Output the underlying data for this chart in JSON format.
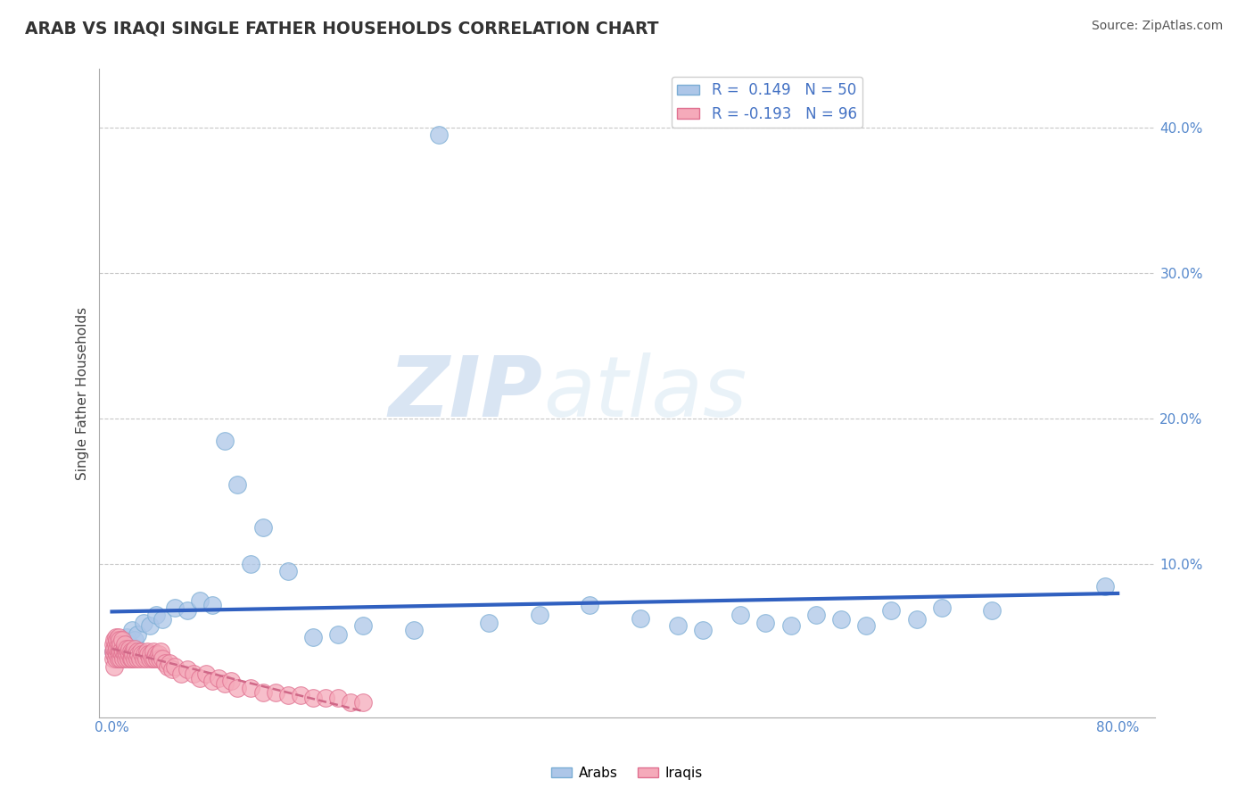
{
  "title": "ARAB VS IRAQI SINGLE FATHER HOUSEHOLDS CORRELATION CHART",
  "source": "Source: ZipAtlas.com",
  "ylabel": "Single Father Households",
  "xlim": [
    -0.01,
    0.83
  ],
  "ylim": [
    -0.005,
    0.44
  ],
  "xtick_vals": [
    0.0,
    0.8
  ],
  "ytick_vals": [
    0.1,
    0.2,
    0.3,
    0.4
  ],
  "grid_color": "#c8c8c8",
  "background_color": "#ffffff",
  "arab_color": "#adc6e8",
  "arab_edge_color": "#7aadd4",
  "iraqi_color": "#f5aaba",
  "iraqi_edge_color": "#e07090",
  "arab_line_color": "#3060c0",
  "iraqi_line_color": "#d06888",
  "legend_r_arab": "R =  0.149",
  "legend_n_arab": "N = 50",
  "legend_r_iraqi": "R = -0.193",
  "legend_n_iraqi": "N = 96",
  "watermark_zip": "ZIP",
  "watermark_atlas": "atlas",
  "arab_x": [
    0.001,
    0.002,
    0.003,
    0.004,
    0.005,
    0.006,
    0.007,
    0.008,
    0.009,
    0.01,
    0.012,
    0.014,
    0.016,
    0.018,
    0.02,
    0.025,
    0.03,
    0.035,
    0.04,
    0.05,
    0.06,
    0.07,
    0.08,
    0.09,
    0.1,
    0.11,
    0.12,
    0.14,
    0.16,
    0.18,
    0.2,
    0.24,
    0.26,
    0.3,
    0.34,
    0.38,
    0.42,
    0.45,
    0.47,
    0.5,
    0.52,
    0.54,
    0.56,
    0.58,
    0.6,
    0.62,
    0.64,
    0.66,
    0.7,
    0.79
  ],
  "arab_y": [
    0.04,
    0.038,
    0.042,
    0.035,
    0.045,
    0.038,
    0.042,
    0.035,
    0.048,
    0.04,
    0.05,
    0.045,
    0.055,
    0.048,
    0.052,
    0.06,
    0.058,
    0.065,
    0.062,
    0.07,
    0.068,
    0.075,
    0.072,
    0.185,
    0.155,
    0.1,
    0.125,
    0.095,
    0.05,
    0.052,
    0.058,
    0.055,
    0.395,
    0.06,
    0.065,
    0.072,
    0.063,
    0.058,
    0.055,
    0.065,
    0.06,
    0.058,
    0.065,
    0.062,
    0.058,
    0.068,
    0.062,
    0.07,
    0.068,
    0.085
  ],
  "iraqi_x": [
    0.001,
    0.001,
    0.001,
    0.002,
    0.002,
    0.002,
    0.002,
    0.003,
    0.003,
    0.003,
    0.003,
    0.004,
    0.004,
    0.004,
    0.005,
    0.005,
    0.005,
    0.005,
    0.006,
    0.006,
    0.006,
    0.007,
    0.007,
    0.007,
    0.008,
    0.008,
    0.008,
    0.009,
    0.009,
    0.01,
    0.01,
    0.01,
    0.011,
    0.011,
    0.012,
    0.012,
    0.013,
    0.013,
    0.014,
    0.014,
    0.015,
    0.015,
    0.016,
    0.016,
    0.017,
    0.017,
    0.018,
    0.018,
    0.019,
    0.02,
    0.02,
    0.021,
    0.022,
    0.023,
    0.024,
    0.025,
    0.026,
    0.027,
    0.028,
    0.029,
    0.03,
    0.031,
    0.032,
    0.033,
    0.034,
    0.035,
    0.036,
    0.037,
    0.038,
    0.039,
    0.04,
    0.042,
    0.044,
    0.046,
    0.048,
    0.05,
    0.055,
    0.06,
    0.065,
    0.07,
    0.075,
    0.08,
    0.085,
    0.09,
    0.095,
    0.1,
    0.11,
    0.12,
    0.13,
    0.14,
    0.15,
    0.16,
    0.17,
    0.18,
    0.19,
    0.2
  ],
  "iraqi_y": [
    0.035,
    0.04,
    0.045,
    0.03,
    0.038,
    0.042,
    0.048,
    0.035,
    0.04,
    0.045,
    0.05,
    0.038,
    0.042,
    0.048,
    0.035,
    0.04,
    0.045,
    0.05,
    0.038,
    0.042,
    0.048,
    0.035,
    0.04,
    0.045,
    0.038,
    0.042,
    0.048,
    0.035,
    0.04,
    0.038,
    0.042,
    0.045,
    0.035,
    0.04,
    0.038,
    0.042,
    0.035,
    0.04,
    0.038,
    0.042,
    0.035,
    0.04,
    0.038,
    0.035,
    0.04,
    0.038,
    0.035,
    0.042,
    0.038,
    0.035,
    0.04,
    0.038,
    0.035,
    0.04,
    0.038,
    0.035,
    0.038,
    0.035,
    0.04,
    0.038,
    0.035,
    0.038,
    0.035,
    0.04,
    0.035,
    0.038,
    0.035,
    0.038,
    0.035,
    0.04,
    0.035,
    0.032,
    0.03,
    0.032,
    0.028,
    0.03,
    0.025,
    0.028,
    0.025,
    0.022,
    0.025,
    0.02,
    0.022,
    0.018,
    0.02,
    0.015,
    0.015,
    0.012,
    0.012,
    0.01,
    0.01,
    0.008,
    0.008,
    0.008,
    0.005,
    0.005
  ]
}
